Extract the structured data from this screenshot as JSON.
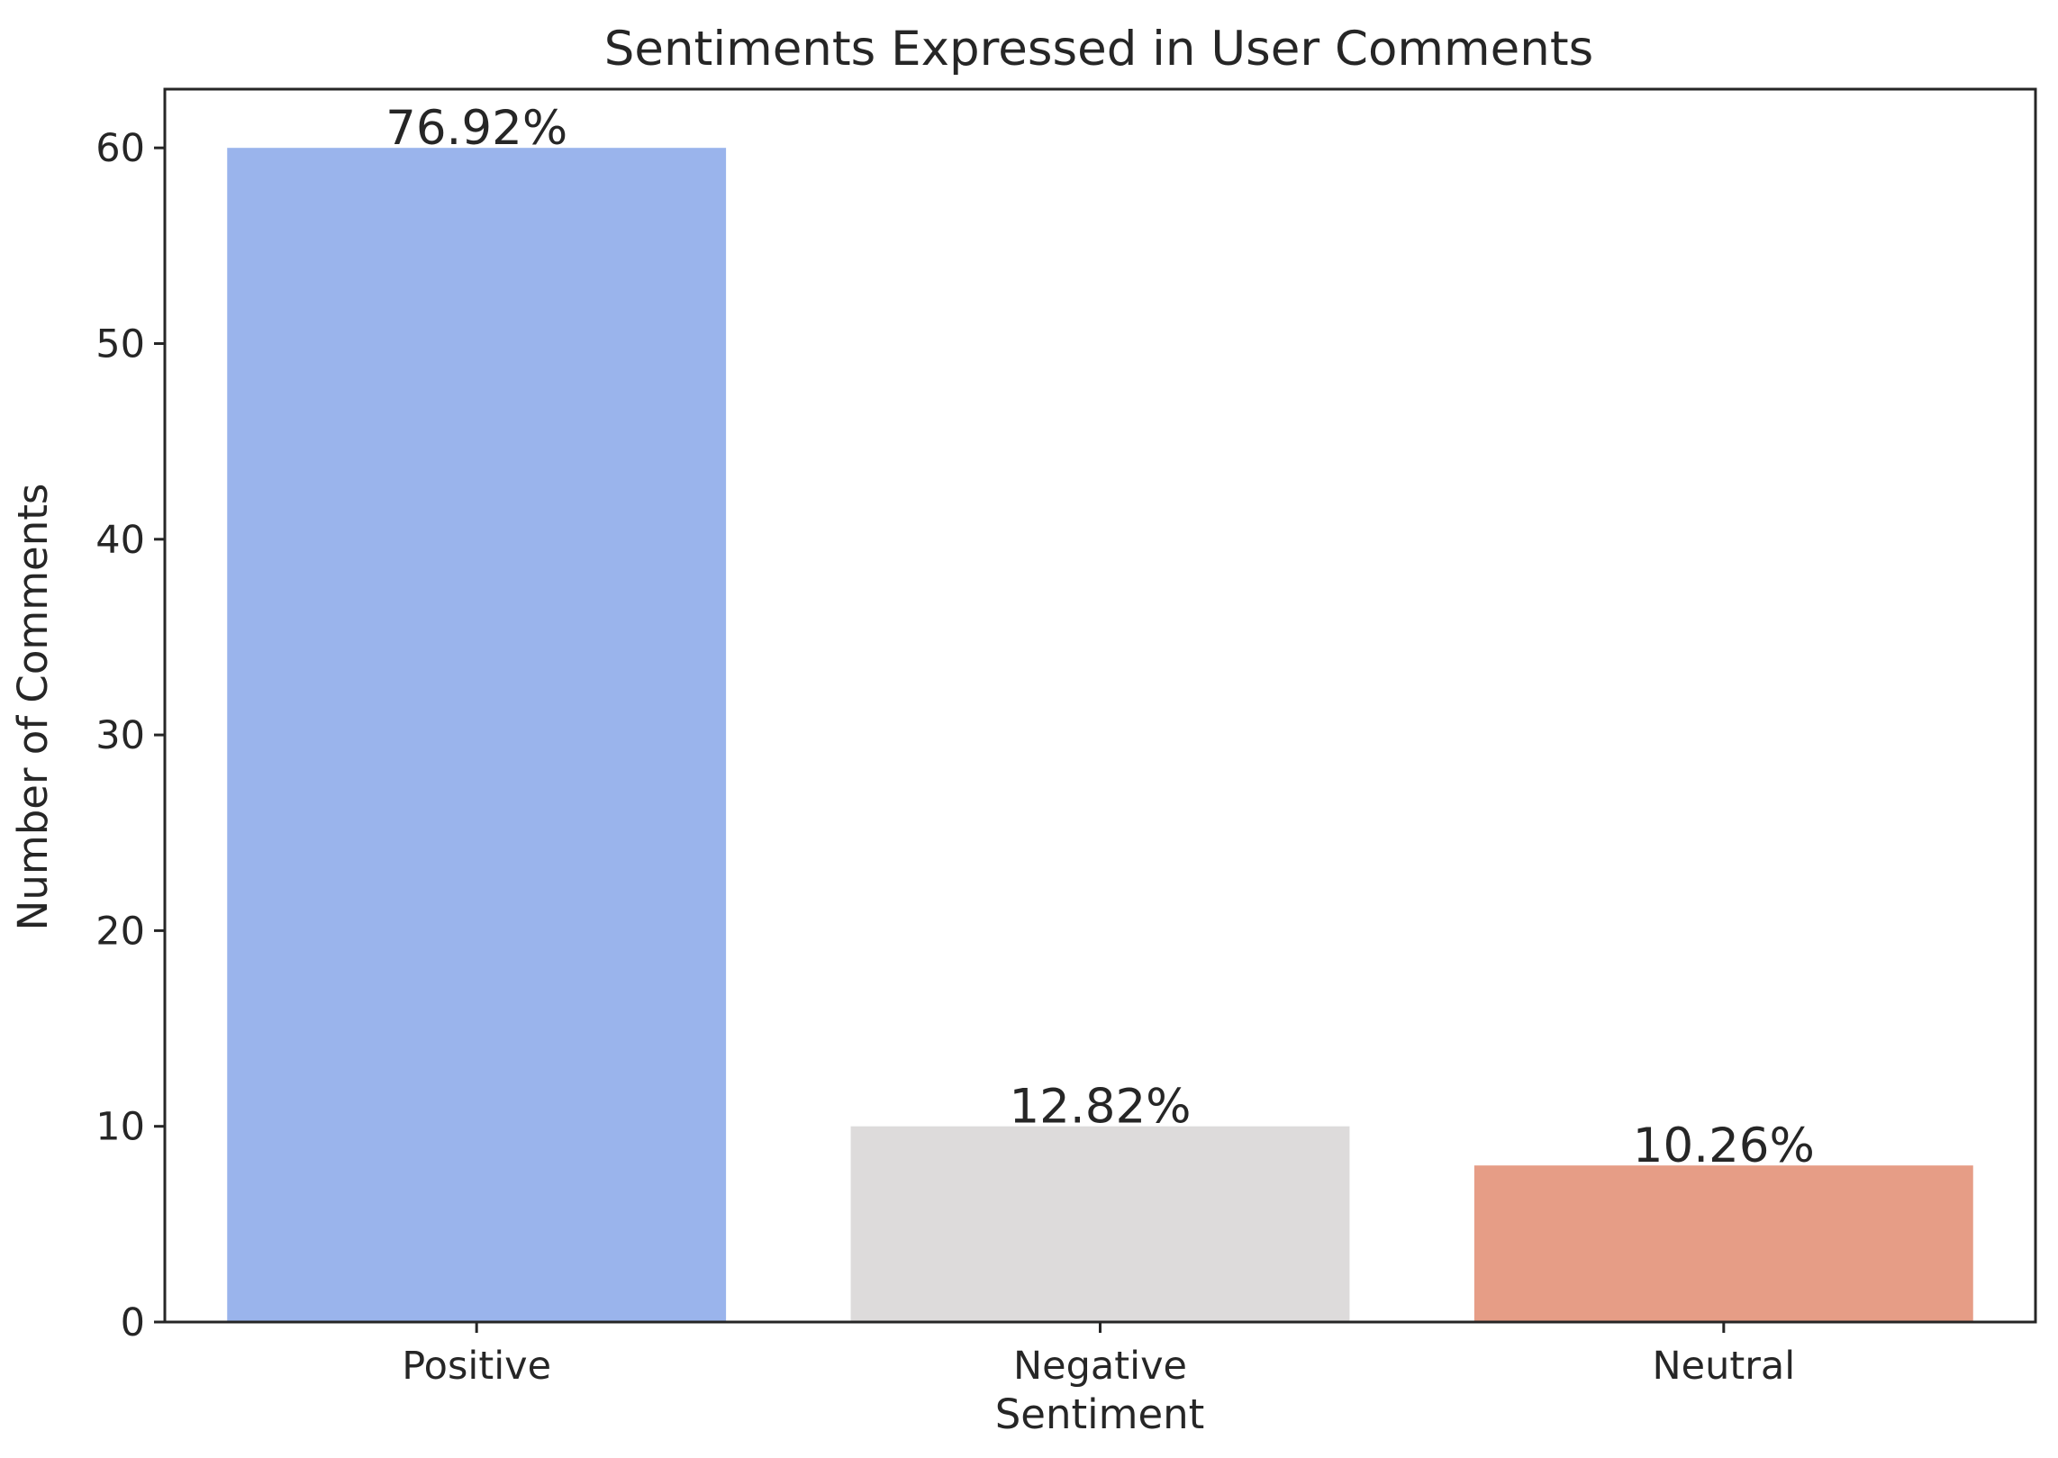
{
  "chart_data": {
    "type": "bar",
    "title": "Sentiments Expressed in User Comments",
    "xlabel": "Sentiment",
    "ylabel": "Number of Comments",
    "categories": [
      "Positive",
      "Negative",
      "Neutral"
    ],
    "values": [
      60,
      10,
      8
    ],
    "data_labels": [
      "76.92%",
      "12.82%",
      "10.26%"
    ],
    "colors": [
      "#9ab4ec",
      "#dddbdb",
      "#e69d86"
    ],
    "ylim": [
      0,
      63
    ],
    "yticks": [
      0,
      10,
      20,
      30,
      40,
      50,
      60
    ],
    "grid": false,
    "legend": "none"
  }
}
